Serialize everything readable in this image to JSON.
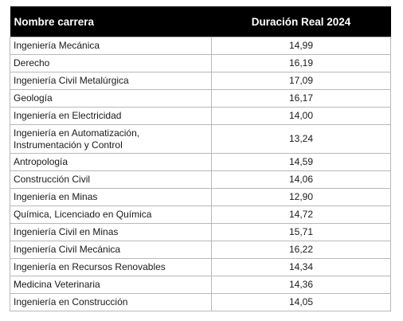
{
  "table": {
    "headers": [
      "Nombre carrera",
      "Duración Real 2024"
    ],
    "rows": [
      [
        "Ingeniería Mecánica",
        "14,99"
      ],
      [
        "Derecho",
        "16,19"
      ],
      [
        "Ingeniería Civil Metalúrgica",
        "17,09"
      ],
      [
        "Geología",
        "16,17"
      ],
      [
        "Ingeniería en Electricidad",
        "14,00"
      ],
      [
        "Ingeniería en Automatización, Instrumentación y Control",
        "13,24"
      ],
      [
        "Antropología",
        "14,59"
      ],
      [
        "Construcción Civil",
        "14,06"
      ],
      [
        "Ingeniería en Minas",
        "12,90"
      ],
      [
        "Química, Licenciado en Química",
        "14,72"
      ],
      [
        "Ingeniería Civil en Minas",
        "15,71"
      ],
      [
        "Ingeniería Civil Mecánica",
        "16,22"
      ],
      [
        "Ingeniería en Recursos Renovables",
        "14,34"
      ],
      [
        "Medicina Veterinaria",
        "14,36"
      ],
      [
        "Ingeniería en Construcción",
        "14,05"
      ]
    ]
  }
}
